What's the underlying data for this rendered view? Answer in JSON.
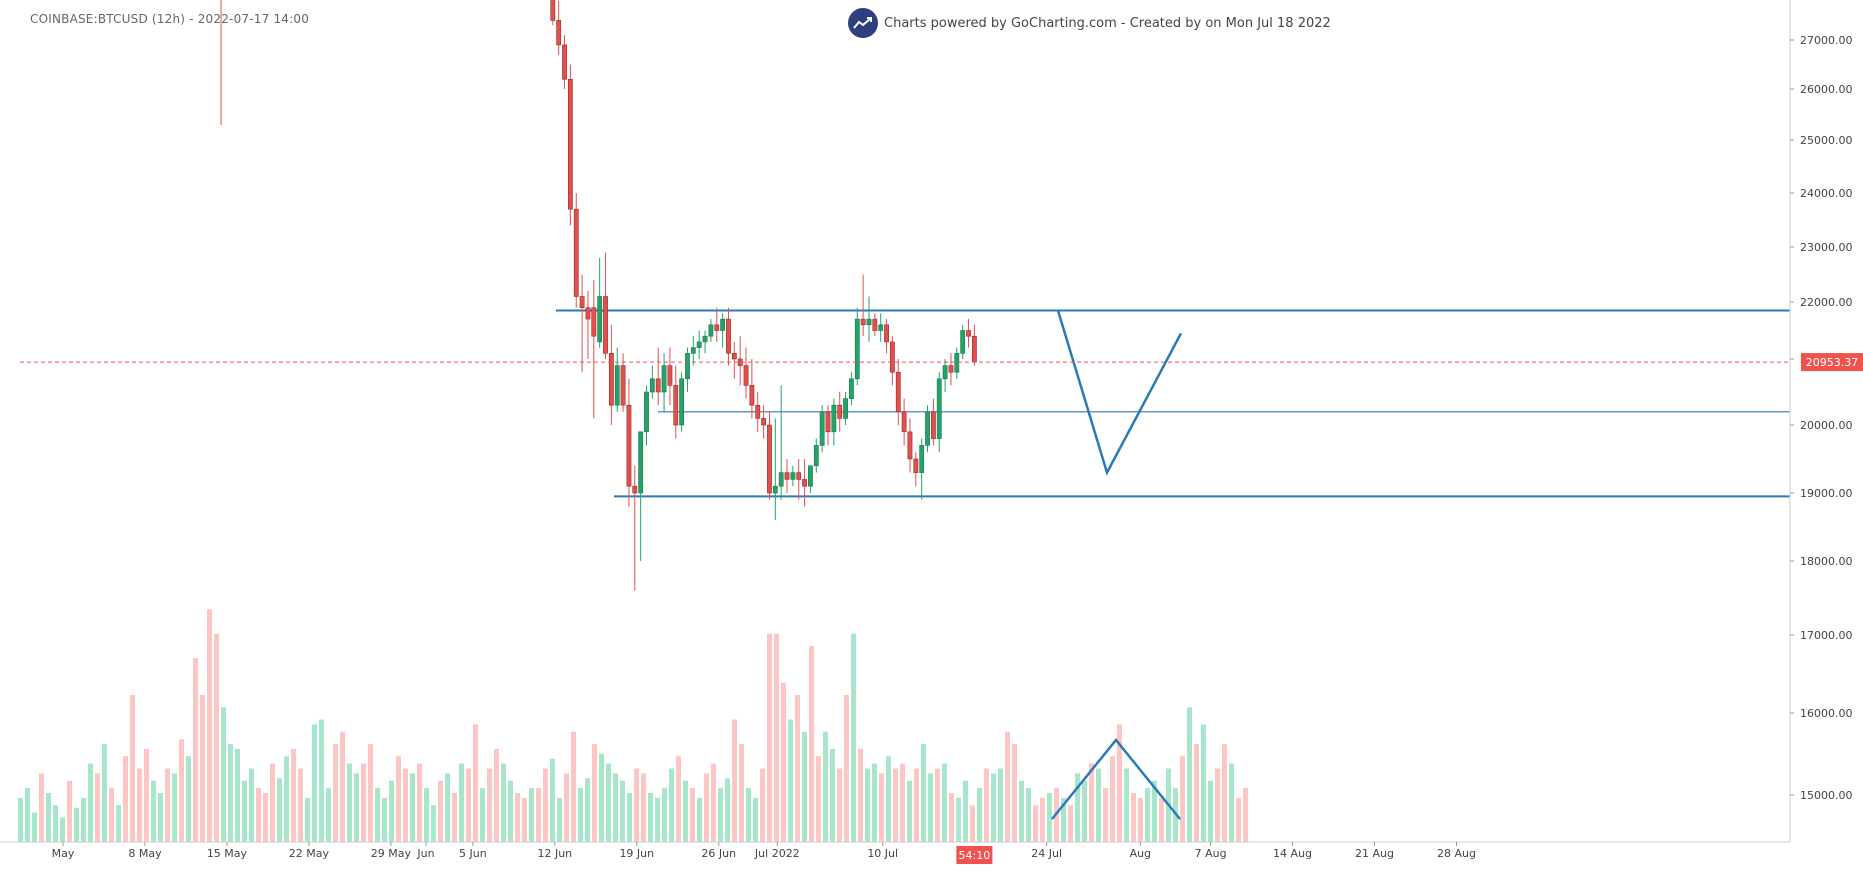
{
  "header": {
    "ticker_label": "COINBASE:BTCUSD (12h) - 2022-07-17 14:00",
    "credit_text": "Charts powered by GoCharting.com - Created by  on Mon Jul 18 2022"
  },
  "colors": {
    "up": "#26a269",
    "down": "#e0514e",
    "up_volume": "#a8e6cc",
    "down_volume": "#fcc6c4",
    "drawing": "#2a7ab8",
    "price_line": "#ef5350",
    "logo": "#2f3e7c"
  },
  "chart_data": {
    "type": "candlestick",
    "symbol": "COINBASE:BTCUSD",
    "interval": "12h",
    "last_price": "20953.37",
    "countdown": "54:10",
    "ylim": [
      14500,
      27700
    ],
    "y_ticks": [
      "15000.00",
      "16000.00",
      "17000.00",
      "18000.00",
      "19000.00",
      "20000.00",
      "21000.00",
      "22000.00",
      "23000.00",
      "24000.00",
      "25000.00",
      "26000.00",
      "27000.00"
    ],
    "x_ticks": [
      {
        "label": "May",
        "date": "2022-05-01"
      },
      {
        "label": "8 May",
        "date": "2022-05-08"
      },
      {
        "label": "15 May",
        "date": "2022-05-15"
      },
      {
        "label": "22 May",
        "date": "2022-05-22"
      },
      {
        "label": "29 May",
        "date": "2022-05-29"
      },
      {
        "label": "Jun",
        "date": "2022-06-01"
      },
      {
        "label": "5 Jun",
        "date": "2022-06-05"
      },
      {
        "label": "12 Jun",
        "date": "2022-06-12"
      },
      {
        "label": "19 Jun",
        "date": "2022-06-19"
      },
      {
        "label": "26 Jun",
        "date": "2022-06-26"
      },
      {
        "label": "Jul 2022",
        "date": "2022-07-01"
      },
      {
        "label": "10 Jul",
        "date": "2022-07-10"
      },
      {
        "label": "24 Jul",
        "date": "2022-07-24"
      },
      {
        "label": "Aug",
        "date": "2022-08-01"
      },
      {
        "label": "7 Aug",
        "date": "2022-08-07"
      },
      {
        "label": "14 Aug",
        "date": "2022-08-14"
      },
      {
        "label": "21 Aug",
        "date": "2022-08-21"
      },
      {
        "label": "28 Aug",
        "date": "2022-08-28"
      }
    ],
    "candles": [
      {
        "t": "2022-06-12",
        "o": 27900,
        "h": 28200,
        "c": 27400,
        "l": 27300
      },
      {
        "t": "2022-06-12 12:00",
        "o": 27400,
        "h": 27800,
        "c": 26900,
        "l": 26700
      },
      {
        "t": "2022-06-13",
        "o": 26900,
        "h": 27100,
        "c": 26200,
        "l": 26000
      },
      {
        "t": "2022-06-13 12:00",
        "o": 26200,
        "h": 26500,
        "c": 23700,
        "l": 23400
      },
      {
        "t": "2022-06-14",
        "o": 23700,
        "h": 24000,
        "c": 22100,
        "l": 21900
      },
      {
        "t": "2022-06-14 12:00",
        "o": 22100,
        "h": 22500,
        "c": 21900,
        "l": 20800
      },
      {
        "t": "2022-06-15",
        "o": 21900,
        "h": 22200,
        "c": 21700,
        "l": 21000
      },
      {
        "t": "2022-06-15 12:00",
        "o": 21900,
        "h": 22400,
        "c": 21400,
        "l": 20100
      },
      {
        "t": "2022-06-16",
        "o": 21300,
        "h": 22800,
        "c": 22100,
        "l": 21200
      },
      {
        "t": "2022-06-16 12:00",
        "o": 22100,
        "h": 22900,
        "c": 21100,
        "l": 21000
      },
      {
        "t": "2022-06-17",
        "o": 21100,
        "h": 21600,
        "c": 20300,
        "l": 20000
      },
      {
        "t": "2022-06-17 12:00",
        "o": 20300,
        "h": 21200,
        "c": 20900,
        "l": 20200
      },
      {
        "t": "2022-06-18",
        "o": 20900,
        "h": 21100,
        "c": 20300,
        "l": 20200
      },
      {
        "t": "2022-06-18 12:00",
        "o": 20300,
        "h": 20700,
        "c": 19100,
        "l": 18800
      },
      {
        "t": "2022-06-19",
        "o": 19100,
        "h": 19400,
        "c": 19000,
        "l": 17600
      },
      {
        "t": "2022-06-19 12:00",
        "o": 19000,
        "h": 19800,
        "c": 19900,
        "l": 18000
      },
      {
        "t": "2022-06-20",
        "o": 19900,
        "h": 20600,
        "c": 20500,
        "l": 19700
      },
      {
        "t": "2022-06-20 12:00",
        "o": 20500,
        "h": 20900,
        "c": 20700,
        "l": 20400
      },
      {
        "t": "2022-06-21",
        "o": 20700,
        "h": 21200,
        "c": 20500,
        "l": 20300
      },
      {
        "t": "2022-06-21 12:00",
        "o": 20500,
        "h": 21100,
        "c": 20900,
        "l": 20200
      },
      {
        "t": "2022-06-22",
        "o": 20900,
        "h": 21200,
        "c": 20600,
        "l": 20300
      },
      {
        "t": "2022-06-22 12:00",
        "o": 20600,
        "h": 20900,
        "c": 20000,
        "l": 19800
      },
      {
        "t": "2022-06-23",
        "o": 20000,
        "h": 20800,
        "c": 20700,
        "l": 19900
      },
      {
        "t": "2022-06-23 12:00",
        "o": 20700,
        "h": 21200,
        "c": 21100,
        "l": 20500
      },
      {
        "t": "2022-06-24",
        "o": 21100,
        "h": 21400,
        "c": 21200,
        "l": 20900
      },
      {
        "t": "2022-06-24 12:00",
        "o": 21200,
        "h": 21500,
        "c": 21300,
        "l": 21000
      },
      {
        "t": "2022-06-25",
        "o": 21300,
        "h": 21500,
        "c": 21400,
        "l": 21100
      },
      {
        "t": "2022-06-25 12:00",
        "o": 21400,
        "h": 21700,
        "c": 21600,
        "l": 21300
      },
      {
        "t": "2022-06-26",
        "o": 21600,
        "h": 21900,
        "c": 21500,
        "l": 21300
      },
      {
        "t": "2022-06-26 12:00",
        "o": 21500,
        "h": 21800,
        "c": 21700,
        "l": 21200
      },
      {
        "t": "2022-06-27",
        "o": 21700,
        "h": 21900,
        "c": 21100,
        "l": 20900
      },
      {
        "t": "2022-06-27 12:00",
        "o": 21100,
        "h": 21300,
        "c": 21000,
        "l": 20700
      },
      {
        "t": "2022-06-28",
        "o": 21000,
        "h": 21400,
        "c": 20900,
        "l": 20600
      },
      {
        "t": "2022-06-28 12:00",
        "o": 20900,
        "h": 21200,
        "c": 20600,
        "l": 20400
      },
      {
        "t": "2022-06-29",
        "o": 20600,
        "h": 21000,
        "c": 20300,
        "l": 20100
      },
      {
        "t": "2022-06-29 12:00",
        "o": 20300,
        "h": 20500,
        "c": 20100,
        "l": 19900
      },
      {
        "t": "2022-06-30",
        "o": 20100,
        "h": 20300,
        "c": 20000,
        "l": 19800
      },
      {
        "t": "2022-06-30 12:00",
        "o": 20000,
        "h": 20200,
        "c": 19000,
        "l": 18900
      },
      {
        "t": "2022-07-01",
        "o": 19000,
        "h": 20100,
        "c": 19100,
        "l": 18600
      },
      {
        "t": "2022-07-01 12:00",
        "o": 19100,
        "h": 20600,
        "c": 19300,
        "l": 18900
      },
      {
        "t": "2022-07-02",
        "o": 19300,
        "h": 19500,
        "c": 19200,
        "l": 19000
      },
      {
        "t": "2022-07-02 12:00",
        "o": 19200,
        "h": 19400,
        "c": 19300,
        "l": 19100
      },
      {
        "t": "2022-07-03",
        "o": 19300,
        "h": 19500,
        "c": 19200,
        "l": 18900
      },
      {
        "t": "2022-07-03 12:00",
        "o": 19200,
        "h": 19500,
        "c": 19100,
        "l": 18800
      },
      {
        "t": "2022-07-04",
        "o": 19100,
        "h": 19300,
        "c": 19400,
        "l": 19000
      },
      {
        "t": "2022-07-04 12:00",
        "o": 19400,
        "h": 19800,
        "c": 19700,
        "l": 19300
      },
      {
        "t": "2022-07-05",
        "o": 19700,
        "h": 20300,
        "c": 20200,
        "l": 19600
      },
      {
        "t": "2022-07-05 12:00",
        "o": 20200,
        "h": 20300,
        "c": 19900,
        "l": 19700
      },
      {
        "t": "2022-07-06",
        "o": 19900,
        "h": 20400,
        "c": 20300,
        "l": 19700
      },
      {
        "t": "2022-07-06 12:00",
        "o": 20300,
        "h": 20500,
        "c": 20100,
        "l": 19900
      },
      {
        "t": "2022-07-07",
        "o": 20100,
        "h": 20500,
        "c": 20400,
        "l": 20000
      },
      {
        "t": "2022-07-07 12:00",
        "o": 20400,
        "h": 20800,
        "c": 20700,
        "l": 20300
      },
      {
        "t": "2022-07-08",
        "o": 20700,
        "h": 21900,
        "c": 21700,
        "l": 20600
      },
      {
        "t": "2022-07-08 12:00",
        "o": 21700,
        "h": 22500,
        "c": 21600,
        "l": 21400
      },
      {
        "t": "2022-07-09",
        "o": 21600,
        "h": 22100,
        "c": 21700,
        "l": 21300
      },
      {
        "t": "2022-07-09 12:00",
        "o": 21700,
        "h": 21800,
        "c": 21500,
        "l": 21400
      },
      {
        "t": "2022-07-10",
        "o": 21500,
        "h": 21800,
        "c": 21600,
        "l": 21300
      },
      {
        "t": "2022-07-10 12:00",
        "o": 21600,
        "h": 21700,
        "c": 21300,
        "l": 21100
      },
      {
        "t": "2022-07-11",
        "o": 21300,
        "h": 21400,
        "c": 20800,
        "l": 20600
      },
      {
        "t": "2022-07-11 12:00",
        "o": 20800,
        "h": 21000,
        "c": 20200,
        "l": 20000
      },
      {
        "t": "2022-07-12",
        "o": 20200,
        "h": 20400,
        "c": 19900,
        "l": 19700
      },
      {
        "t": "2022-07-12 12:00",
        "o": 19900,
        "h": 20100,
        "c": 19500,
        "l": 19300
      },
      {
        "t": "2022-07-13",
        "o": 19500,
        "h": 19600,
        "c": 19300,
        "l": 19100
      },
      {
        "t": "2022-07-13 12:00",
        "o": 19300,
        "h": 19800,
        "c": 19700,
        "l": 18900
      },
      {
        "t": "2022-07-14",
        "o": 19700,
        "h": 20300,
        "c": 20200,
        "l": 19600
      },
      {
        "t": "2022-07-14 12:00",
        "o": 20200,
        "h": 20400,
        "c": 19800,
        "l": 19700
      },
      {
        "t": "2022-07-15",
        "o": 19800,
        "h": 20800,
        "c": 20700,
        "l": 19600
      },
      {
        "t": "2022-07-15 12:00",
        "o": 20700,
        "h": 21000,
        "c": 20900,
        "l": 20500
      },
      {
        "t": "2022-07-16",
        "o": 20900,
        "h": 21100,
        "c": 20800,
        "l": 20600
      },
      {
        "t": "2022-07-16 12:00",
        "o": 20800,
        "h": 21200,
        "c": 21100,
        "l": 20700
      },
      {
        "t": "2022-07-17",
        "o": 21100,
        "h": 21600,
        "c": 21500,
        "l": 21000
      },
      {
        "t": "2022-07-17 12:00",
        "o": 21500,
        "h": 21700,
        "c": 21400,
        "l": 21200
      },
      {
        "t": "2022-07-18",
        "o": 21400,
        "h": 21600,
        "c": 20953,
        "l": 20900
      }
    ],
    "early_candles": [
      {
        "t": "2022-05-11",
        "o": 27800,
        "h": 27800,
        "c": 27700,
        "l": 25300
      },
      {
        "t": "2022-05-11 12:00",
        "o": 27700,
        "h": 27800,
        "c": 27700,
        "l": 27700
      }
    ],
    "volume": [
      0.18,
      0.22,
      0.12,
      0.28,
      0.2,
      0.15,
      0.1,
      0.25,
      0.14,
      0.18,
      0.32,
      0.28,
      0.4,
      0.22,
      0.15,
      0.35,
      0.6,
      0.3,
      0.38,
      0.25,
      0.2,
      0.3,
      0.28,
      0.42,
      0.35,
      0.75,
      0.6,
      0.95,
      0.85,
      0.55,
      0.4,
      0.38,
      0.25,
      0.3,
      0.22,
      0.2,
      0.32,
      0.26,
      0.35,
      0.38,
      0.3,
      0.18,
      0.48,
      0.5,
      0.22,
      0.4,
      0.45,
      0.32,
      0.28,
      0.32,
      0.4,
      0.22,
      0.18,
      0.25,
      0.35,
      0.3,
      0.28,
      0.32,
      0.22,
      0.15,
      0.25,
      0.28,
      0.2,
      0.32,
      0.3,
      0.48,
      0.22,
      0.3,
      0.38,
      0.32,
      0.25,
      0.2,
      0.18,
      0.22,
      0.22,
      0.3,
      0.34,
      0.18,
      0.28,
      0.45,
      0.22,
      0.26,
      0.4,
      0.36,
      0.32,
      0.28,
      0.25,
      0.2,
      0.3,
      0.28,
      0.2,
      0.18,
      0.22,
      0.3,
      0.35,
      0.25,
      0.22,
      0.18,
      0.28,
      0.32,
      0.22,
      0.26,
      0.5,
      0.4,
      0.22,
      0.18,
      0.3,
      0.85,
      0.85,
      0.65,
      0.5,
      0.6,
      0.45,
      0.8,
      0.35,
      0.45,
      0.38,
      0.3,
      0.6,
      0.85,
      0.38,
      0.3,
      0.32,
      0.28,
      0.35,
      0.3,
      0.32,
      0.25,
      0.3,
      0.4,
      0.28,
      0.3,
      0.32,
      0.2,
      0.18,
      0.25,
      0.15,
      0.22,
      0.3,
      0.28,
      0.3,
      0.45,
      0.4,
      0.25,
      0.22,
      0.15,
      0.18,
      0.2,
      0.22,
      0.18,
      0.15,
      0.28,
      0.25,
      0.32,
      0.3,
      0.22,
      0.35,
      0.48,
      0.3,
      0.2,
      0.18,
      0.22,
      0.25,
      0.18,
      0.3,
      0.22,
      0.35,
      0.55,
      0.4,
      0.48,
      0.25,
      0.3,
      0.4,
      0.32,
      0.18,
      0.22
    ],
    "volume_up": [
      1,
      1,
      1,
      0,
      1,
      1,
      1,
      0,
      1,
      1,
      1,
      0,
      1,
      0,
      1,
      0,
      0,
      0,
      0,
      1,
      1,
      0,
      1,
      0,
      1,
      0,
      0,
      0,
      0,
      1,
      1,
      1,
      1,
      1,
      0,
      0,
      0,
      1,
      1,
      0,
      0,
      1,
      1,
      1,
      1,
      0,
      0,
      1,
      1,
      0,
      0,
      1,
      1,
      1,
      0,
      0,
      1,
      0,
      1,
      1,
      0,
      1,
      0,
      1,
      0,
      0,
      1,
      0,
      0,
      1,
      1,
      0,
      0,
      1,
      0,
      0,
      1,
      1,
      0,
      0,
      1,
      1,
      0,
      1,
      1,
      1,
      1,
      1,
      0,
      0,
      1,
      1,
      1,
      1,
      0,
      1,
      0,
      1,
      0,
      0,
      1,
      1,
      0,
      0,
      1,
      1,
      0,
      0,
      0,
      0,
      1,
      0,
      1,
      0,
      0,
      1,
      1,
      0,
      0,
      1,
      0,
      1,
      1,
      0,
      1,
      0,
      0,
      1,
      0,
      1,
      1,
      0,
      1,
      0,
      1,
      1,
      0,
      1,
      0,
      1,
      1,
      0,
      0,
      1,
      1,
      0,
      0,
      1,
      0,
      1,
      0,
      1,
      1,
      0,
      1,
      0,
      0,
      0,
      1,
      0,
      0,
      1,
      1,
      0,
      1,
      1,
      0,
      1,
      0,
      1,
      1,
      0,
      0,
      1,
      0,
      0
    ]
  },
  "annotations": {
    "resistance": 21850,
    "midline": 20200,
    "support": 18950
  }
}
